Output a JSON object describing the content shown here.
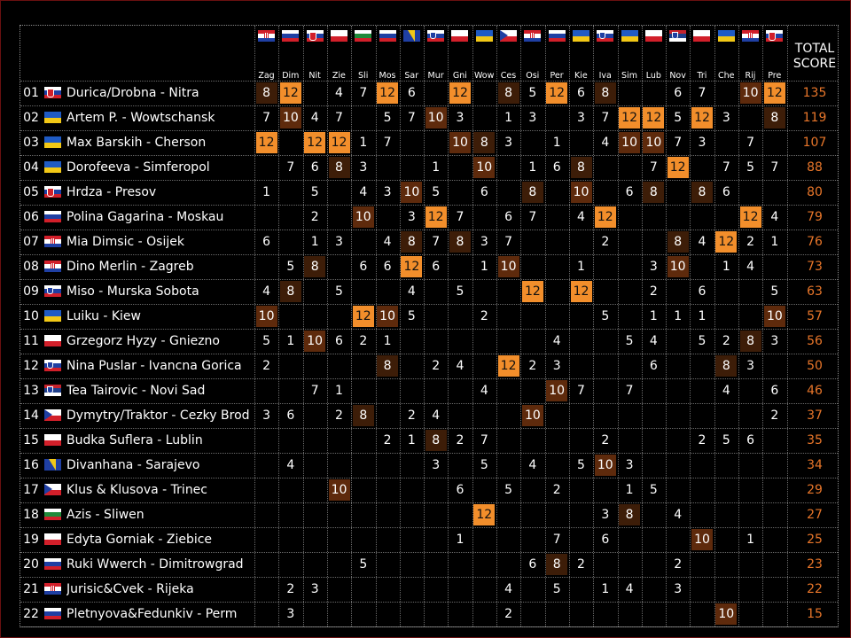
{
  "header": {
    "total_line1": "TOTAL",
    "total_line2": "SCORE"
  },
  "colors": {
    "points_12": "#f28e2b",
    "points_10": "#5e2a0c",
    "points_8": "#3d1d08",
    "total_text": "#e8762a"
  },
  "juries": [
    {
      "code": "Zag",
      "flag": "croatia"
    },
    {
      "code": "Dim",
      "flag": "russia"
    },
    {
      "code": "Nit",
      "flag": "slovakia"
    },
    {
      "code": "Zie",
      "flag": "poland"
    },
    {
      "code": "Sli",
      "flag": "bulgaria"
    },
    {
      "code": "Mos",
      "flag": "russia"
    },
    {
      "code": "Sar",
      "flag": "bosnia"
    },
    {
      "code": "Mur",
      "flag": "slovenia"
    },
    {
      "code": "Gni",
      "flag": "poland"
    },
    {
      "code": "Wow",
      "flag": "ukraine"
    },
    {
      "code": "Ces",
      "flag": "czech"
    },
    {
      "code": "Osi",
      "flag": "croatia"
    },
    {
      "code": "Per",
      "flag": "russia"
    },
    {
      "code": "Kie",
      "flag": "ukraine"
    },
    {
      "code": "Iva",
      "flag": "slovenia"
    },
    {
      "code": "Sim",
      "flag": "ukraine"
    },
    {
      "code": "Lub",
      "flag": "poland"
    },
    {
      "code": "Nov",
      "flag": "serbia"
    },
    {
      "code": "Tri",
      "flag": "poland"
    },
    {
      "code": "Che",
      "flag": "ukraine"
    },
    {
      "code": "Rij",
      "flag": "croatia"
    },
    {
      "code": "Pre",
      "flag": "slovakia"
    }
  ],
  "rows": [
    {
      "pos": "01",
      "flag": "slovakia",
      "name": "Durica/Drobna - Nitra",
      "scores": [
        8,
        12,
        null,
        4,
        7,
        12,
        6,
        null,
        12,
        null,
        8,
        5,
        12,
        6,
        8,
        null,
        null,
        6,
        7,
        null,
        10,
        12
      ],
      "total": 135
    },
    {
      "pos": "02",
      "flag": "ukraine",
      "name": "Artem P. - Wowtschansk",
      "scores": [
        7,
        10,
        4,
        7,
        null,
        5,
        7,
        10,
        3,
        null,
        1,
        3,
        null,
        3,
        7,
        12,
        12,
        5,
        12,
        3,
        null,
        8
      ],
      "total": 119
    },
    {
      "pos": "03",
      "flag": "ukraine",
      "name": "Max Barskih - Cherson",
      "scores": [
        12,
        null,
        12,
        12,
        1,
        7,
        null,
        null,
        10,
        8,
        3,
        null,
        1,
        null,
        4,
        10,
        10,
        7,
        3,
        null,
        7,
        null
      ],
      "total": 107
    },
    {
      "pos": "04",
      "flag": "ukraine",
      "name": "Dorofeeva - Simferopol",
      "scores": [
        null,
        7,
        6,
        8,
        3,
        null,
        null,
        1,
        null,
        10,
        null,
        1,
        6,
        8,
        null,
        null,
        7,
        12,
        null,
        7,
        5,
        7
      ],
      "total": 88
    },
    {
      "pos": "05",
      "flag": "slovakia",
      "name": "Hrdza - Presov",
      "scores": [
        1,
        null,
        5,
        null,
        4,
        3,
        10,
        5,
        null,
        6,
        null,
        8,
        null,
        10,
        null,
        6,
        8,
        null,
        8,
        6,
        null,
        null
      ],
      "total": 80
    },
    {
      "pos": "06",
      "flag": "russia",
      "name": "Polina Gagarina - Moskau",
      "scores": [
        null,
        null,
        2,
        null,
        10,
        null,
        3,
        12,
        7,
        null,
        6,
        7,
        null,
        4,
        12,
        null,
        null,
        null,
        null,
        null,
        12,
        4
      ],
      "total": 79
    },
    {
      "pos": "07",
      "flag": "croatia",
      "name": "Mia Dimsic - Osijek",
      "scores": [
        6,
        null,
        1,
        3,
        null,
        4,
        8,
        7,
        8,
        3,
        7,
        null,
        null,
        null,
        2,
        null,
        null,
        8,
        4,
        12,
        2,
        1
      ],
      "total": 76
    },
    {
      "pos": "08",
      "flag": "croatia",
      "name": "Dino Merlin - Zagreb",
      "scores": [
        null,
        5,
        8,
        null,
        6,
        6,
        12,
        6,
        null,
        1,
        10,
        null,
        null,
        1,
        null,
        null,
        3,
        10,
        null,
        1,
        4,
        null
      ],
      "total": 73
    },
    {
      "pos": "09",
      "flag": "slovenia",
      "name": "Miso - Murska Sobota",
      "scores": [
        4,
        8,
        null,
        5,
        null,
        null,
        4,
        null,
        5,
        null,
        null,
        12,
        null,
        12,
        null,
        null,
        2,
        null,
        6,
        null,
        null,
        5
      ],
      "total": 63
    },
    {
      "pos": "10",
      "flag": "ukraine",
      "name": "Luiku - Kiew",
      "scores": [
        10,
        null,
        null,
        null,
        12,
        10,
        5,
        null,
        null,
        2,
        null,
        null,
        null,
        null,
        5,
        null,
        1,
        1,
        1,
        null,
        null,
        10
      ],
      "total": 57
    },
    {
      "pos": "11",
      "flag": "poland",
      "name": "Grzegorz Hyzy - Gniezno",
      "scores": [
        5,
        1,
        10,
        6,
        2,
        1,
        null,
        null,
        null,
        null,
        null,
        null,
        4,
        null,
        null,
        5,
        4,
        null,
        5,
        2,
        8,
        3
      ],
      "total": 56
    },
    {
      "pos": "12",
      "flag": "slovenia",
      "name": "Nina Puslar - Ivancna Gorica",
      "scores": [
        2,
        null,
        null,
        null,
        null,
        8,
        null,
        2,
        4,
        null,
        12,
        2,
        3,
        null,
        null,
        null,
        6,
        null,
        null,
        8,
        3,
        null
      ],
      "total": 50
    },
    {
      "pos": "13",
      "flag": "serbia",
      "name": "Tea Tairovic - Novi Sad",
      "scores": [
        null,
        null,
        7,
        1,
        null,
        null,
        null,
        null,
        null,
        4,
        null,
        null,
        10,
        7,
        null,
        7,
        null,
        null,
        null,
        4,
        null,
        6
      ],
      "total": 46
    },
    {
      "pos": "14",
      "flag": "czech",
      "name": "Dymytry/Traktor - Cezky Brod",
      "scores": [
        3,
        6,
        null,
        2,
        8,
        null,
        2,
        4,
        null,
        null,
        null,
        10,
        null,
        null,
        null,
        null,
        null,
        null,
        null,
        null,
        null,
        2
      ],
      "total": 37
    },
    {
      "pos": "15",
      "flag": "poland",
      "name": "Budka Suflera - Lublin",
      "scores": [
        null,
        null,
        null,
        null,
        null,
        2,
        1,
        8,
        2,
        7,
        null,
        null,
        null,
        null,
        2,
        null,
        null,
        null,
        2,
        5,
        6,
        null
      ],
      "total": 35
    },
    {
      "pos": "16",
      "flag": "bosnia",
      "name": "Divanhana - Sarajevo",
      "scores": [
        null,
        4,
        null,
        null,
        null,
        null,
        null,
        3,
        null,
        5,
        null,
        4,
        null,
        5,
        10,
        3,
        null,
        null,
        null,
        null,
        null,
        null
      ],
      "total": 34
    },
    {
      "pos": "17",
      "flag": "czech",
      "name": "Klus & Klusova - Trinec",
      "scores": [
        null,
        null,
        null,
        10,
        null,
        null,
        null,
        null,
        6,
        null,
        5,
        null,
        2,
        null,
        null,
        1,
        5,
        null,
        null,
        null,
        null,
        null
      ],
      "total": 29
    },
    {
      "pos": "18",
      "flag": "bulgaria",
      "name": "Azis - Sliwen",
      "scores": [
        null,
        null,
        null,
        null,
        null,
        null,
        null,
        null,
        null,
        12,
        null,
        null,
        null,
        null,
        3,
        8,
        null,
        4,
        null,
        null,
        null,
        null
      ],
      "total": 27
    },
    {
      "pos": "19",
      "flag": "poland",
      "name": "Edyta Gorniak - Ziebice",
      "scores": [
        null,
        null,
        null,
        null,
        null,
        null,
        null,
        null,
        1,
        null,
        null,
        null,
        7,
        null,
        6,
        null,
        null,
        null,
        10,
        null,
        1,
        null
      ],
      "total": 25
    },
    {
      "pos": "20",
      "flag": "russia",
      "name": "Ruki Wwerch - Dimitrowgrad",
      "scores": [
        null,
        null,
        null,
        null,
        5,
        null,
        null,
        null,
        null,
        null,
        null,
        6,
        8,
        2,
        null,
        null,
        null,
        2,
        null,
        null,
        null,
        null
      ],
      "total": 23
    },
    {
      "pos": "21",
      "flag": "croatia",
      "name": "Jurisic&Cvek - Rijeka",
      "scores": [
        null,
        2,
        3,
        null,
        null,
        null,
        null,
        null,
        null,
        null,
        4,
        null,
        5,
        null,
        1,
        4,
        null,
        3,
        null,
        null,
        null,
        null
      ],
      "total": 22
    },
    {
      "pos": "22",
      "flag": "russia",
      "name": "Pletnyova&Fedunkiv - Perm",
      "scores": [
        null,
        3,
        null,
        null,
        null,
        null,
        null,
        null,
        null,
        null,
        2,
        null,
        null,
        null,
        null,
        null,
        null,
        null,
        null,
        10,
        null,
        null
      ],
      "total": 15
    }
  ]
}
